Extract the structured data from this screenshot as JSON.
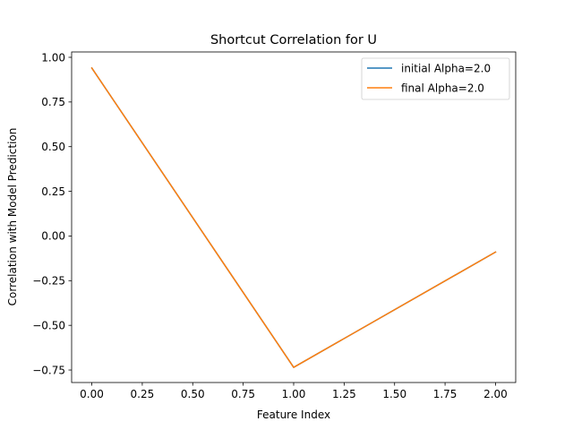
{
  "chart_data": {
    "type": "line",
    "title": "Shortcut Correlation for U",
    "xlabel": "Feature Index",
    "ylabel": "Correlation with Model Prediction",
    "xlim": [
      -0.1,
      2.1
    ],
    "ylim": [
      -0.82,
      1.03
    ],
    "x_ticks": [
      0.0,
      0.25,
      0.5,
      0.75,
      1.0,
      1.25,
      1.5,
      1.75,
      2.0
    ],
    "x_tick_labels": [
      "0.00",
      "0.25",
      "0.50",
      "0.75",
      "1.00",
      "1.25",
      "1.50",
      "1.75",
      "2.00"
    ],
    "y_ticks": [
      1.0,
      0.75,
      0.5,
      0.25,
      0.0,
      -0.25,
      -0.5,
      -0.75
    ],
    "y_tick_labels": [
      "1.00",
      "0.75",
      "0.50",
      "0.25",
      "0.00",
      "−0.25",
      "−0.50",
      "−0.75"
    ],
    "grid": false,
    "legend_position": "upper right",
    "series": [
      {
        "name": "initial Alpha=2.0",
        "color": "#1f77b4",
        "x": [
          0,
          1,
          2
        ],
        "y": [
          0.94,
          -0.735,
          -0.09
        ]
      },
      {
        "name": "final Alpha=2.0",
        "color": "#ff7f0e",
        "x": [
          0,
          1,
          2
        ],
        "y": [
          0.94,
          -0.735,
          -0.09
        ]
      }
    ]
  }
}
